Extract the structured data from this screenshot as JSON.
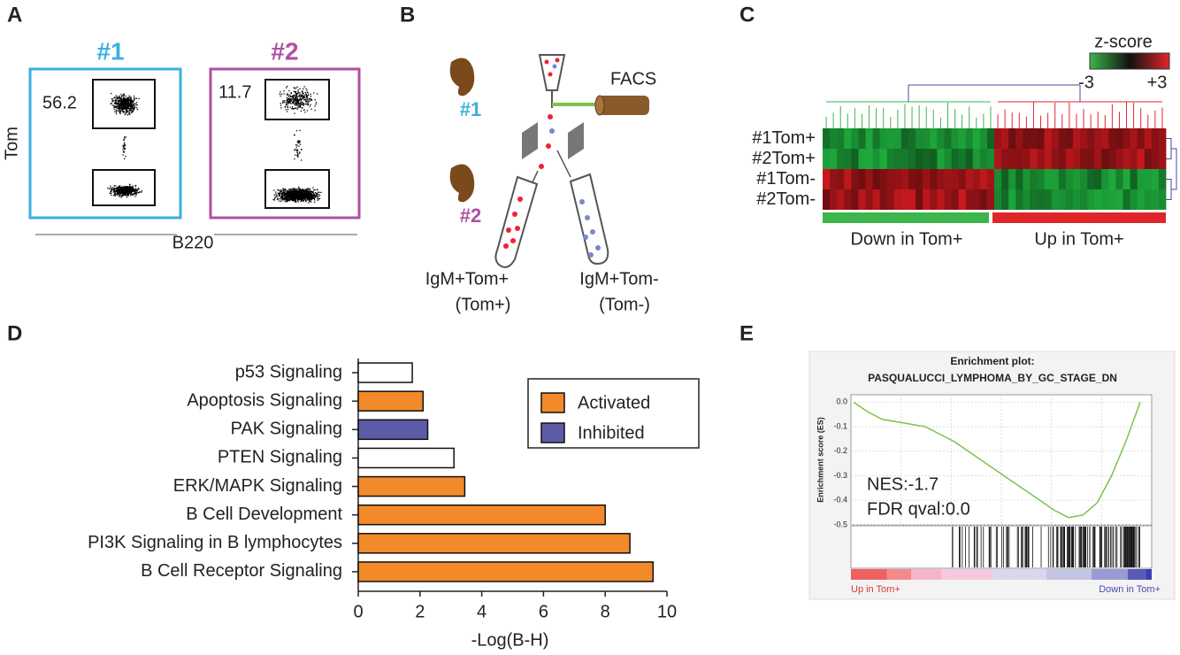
{
  "panel_a": {
    "letter": "A",
    "y_label": "Tom",
    "x_label": "B220",
    "samples": [
      {
        "title": "#1",
        "gate_value": 56.2
      },
      {
        "title": "#2",
        "gate_value": 11.7
      }
    ]
  },
  "panel_b": {
    "letter": "B",
    "mouse_1": "#1",
    "mouse_2": "#2",
    "facs": "FACS",
    "tube_pos": [
      "IgM+Tom+",
      "(Tom+)"
    ],
    "tube_neg": [
      "IgM+Tom-",
      "(Tom-)"
    ]
  },
  "panel_c": {
    "letter": "C",
    "legend_title": "z-score",
    "legend_min": "-3",
    "legend_max": "+3",
    "rows": [
      "#1Tom+",
      "#2Tom+",
      "#1Tom-",
      "#2Tom-"
    ],
    "groups": [
      "Down in Tom+",
      "Up in Tom+"
    ]
  },
  "panel_d": {
    "letter": "D"
  },
  "panel_e": {
    "letter": "E",
    "nes": "NES:-1.7",
    "fdr": "FDR qval:0.0",
    "left_label": "Up in Tom+",
    "right_label": "Down in Tom+"
  },
  "chart_data": [
    {
      "type": "bar",
      "orientation": "horizontal",
      "categories": [
        "p53 Signaling",
        "Apoptosis Signaling",
        "PAK Signaling",
        "PTEN Signaling",
        "ERK/MAPK Signaling",
        "B Cell Development",
        "PI3K Signaling in B lymphocytes",
        "B Cell Receptor Signaling"
      ],
      "values": [
        1.75,
        2.1,
        2.25,
        3.1,
        3.45,
        8.0,
        8.8,
        9.55
      ],
      "bar_colors": [
        "#ffffff",
        "#f28a2a",
        "#5b5ba6",
        "#ffffff",
        "#f28a2a",
        "#f28a2a",
        "#f28a2a",
        "#f28a2a"
      ],
      "legend": [
        {
          "name": "Activated",
          "color": "#f28a2a"
        },
        {
          "name": "Inhibited",
          "color": "#5b5ba6"
        }
      ],
      "x_label": "-Log(B-H)",
      "xlim": [
        0,
        10
      ],
      "xticks": [
        0,
        2,
        4,
        6,
        8,
        10
      ]
    },
    {
      "type": "line",
      "title": "Enrichment plot:",
      "subtitle": "PASQUALUCCI_LYMPHOMA_BY_GC_STAGE_DN",
      "y_label": "Enrichment score (ES)",
      "color": "#7cc34a",
      "grid": true,
      "values": [
        0,
        -0.04,
        -0.07,
        -0.08,
        -0.09,
        -0.1,
        -0.13,
        -0.16,
        -0.2,
        -0.24,
        -0.28,
        -0.32,
        -0.36,
        -0.4,
        -0.44,
        -0.47,
        -0.46,
        -0.41,
        -0.3,
        -0.16,
        0.0
      ],
      "ylim": [
        -0.5,
        0.03
      ],
      "yticks": [
        {
          "value": 0,
          "label": "0.0"
        },
        -0.1,
        -0.2,
        -0.3,
        -0.4,
        -0.5
      ]
    }
  ]
}
